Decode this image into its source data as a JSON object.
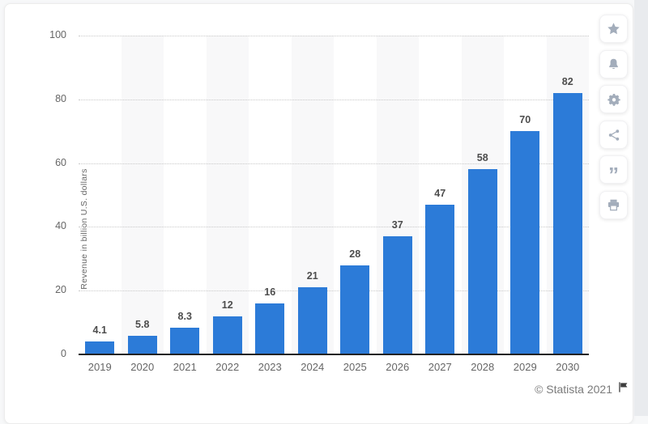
{
  "chart_data": {
    "type": "bar",
    "title": "",
    "categories": [
      "2019",
      "2020",
      "2021",
      "2022",
      "2023",
      "2024",
      "2025",
      "2026",
      "2027",
      "2028",
      "2029",
      "2030"
    ],
    "values": [
      4.1,
      5.8,
      8.3,
      12,
      16,
      21,
      28,
      37,
      47,
      58,
      70,
      82
    ],
    "value_labels": [
      "4.1",
      "5.8",
      "8.3",
      "12",
      "16",
      "21",
      "28",
      "37",
      "47",
      "58",
      "70",
      "82"
    ],
    "xlabel": "",
    "ylabel": "Revenue in billion U.S. dollars",
    "ylim": [
      0,
      100
    ],
    "yticks": [
      0,
      20,
      40,
      60,
      80,
      100
    ],
    "grid": "dotted-horizontal",
    "legend": "none",
    "bar_color": "#2c7bd8",
    "stripe_color": "#f8f8f9",
    "label_color": "#4d4d4d"
  },
  "sidebar": {
    "buttons": [
      {
        "id": "favorite-button",
        "icon": "star-icon"
      },
      {
        "id": "notification-button",
        "icon": "bell-icon"
      },
      {
        "id": "settings-button",
        "icon": "gear-icon"
      },
      {
        "id": "share-button",
        "icon": "share-icon"
      },
      {
        "id": "cite-button",
        "icon": "quote-icon",
        "glyph": "”"
      },
      {
        "id": "print-button",
        "icon": "printer-icon"
      }
    ]
  },
  "footer": {
    "copyright": "© Statista 2021",
    "flag_icon": "flag-icon"
  }
}
